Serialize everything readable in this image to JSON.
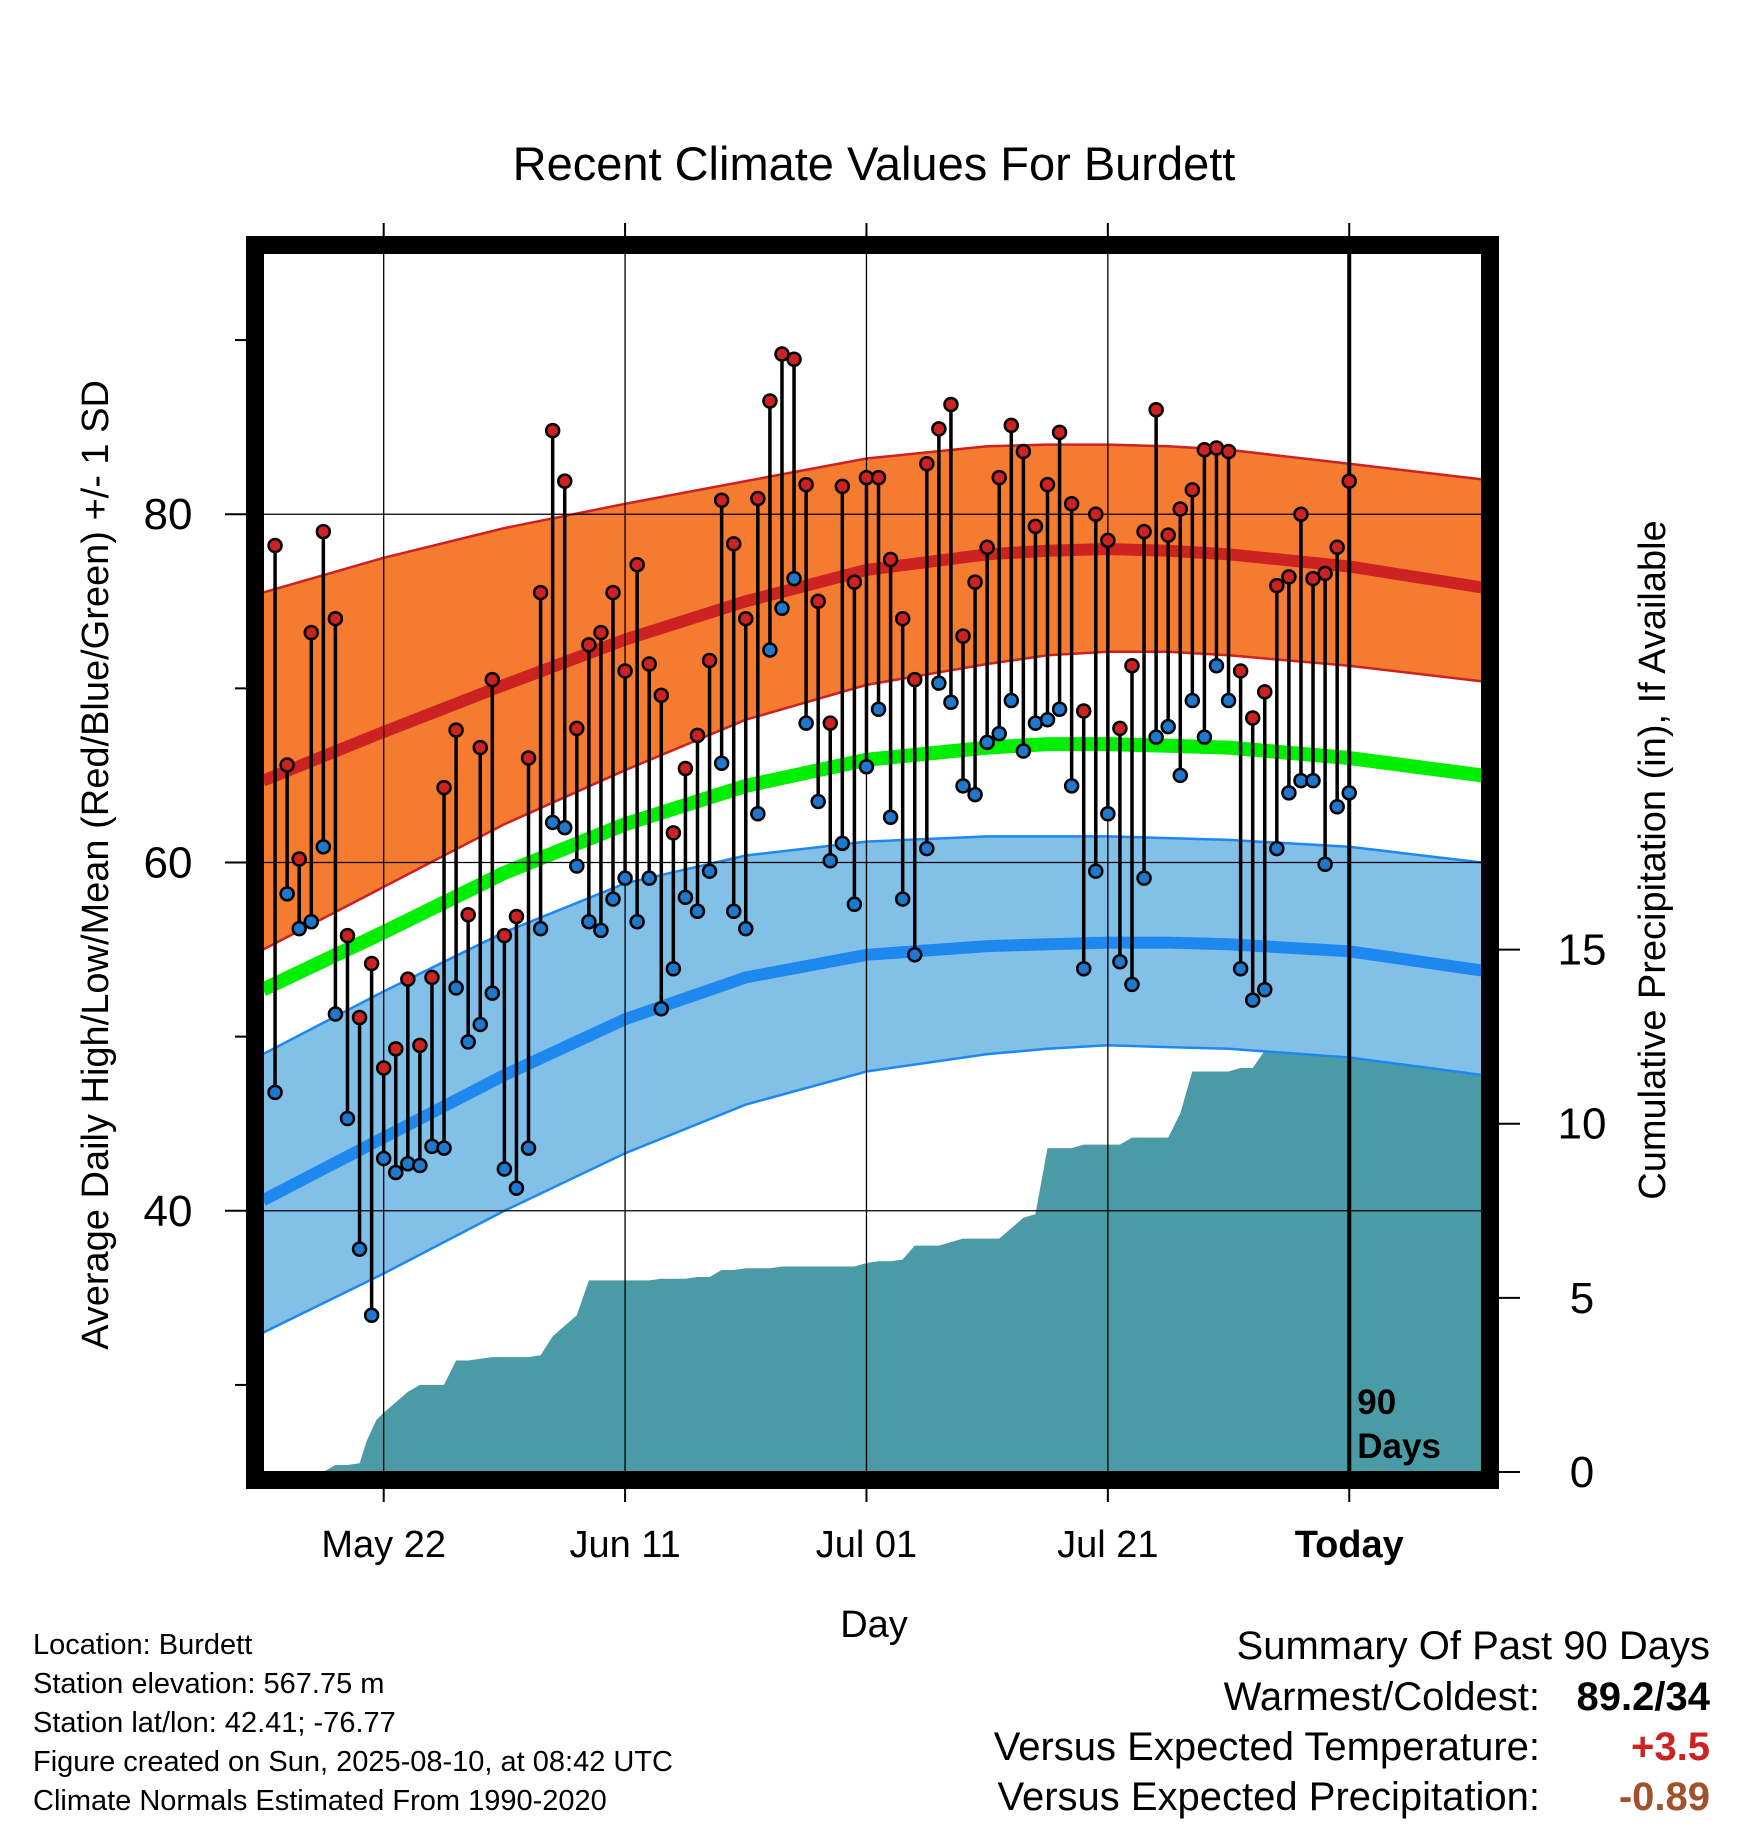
{
  "chart_data": {
    "type": "line",
    "title": "Recent Climate Values For Burdett",
    "xlabel": "Day",
    "ylabel": "Average Daily High/Low/Mean (Red/Blue/Green) +/- 1 SD",
    "y2label": "Cumulative Precipitation (in), If Available",
    "x_ticks": [
      "May 22",
      "Jun 11",
      "Jul 01",
      "Jul 21",
      "Today"
    ],
    "y_ticks": [
      40,
      60,
      80
    ],
    "y2_ticks": [
      0,
      5,
      10,
      15
    ],
    "ylim": [
      25,
      95
    ],
    "y2lim": [
      0,
      35
    ],
    "xlim_days": [
      0,
      101
    ],
    "today_day": 90,
    "today_label_line1": "90",
    "today_label_line2": "Days",
    "normals": {
      "x": [
        0,
        10,
        20,
        30,
        40,
        50,
        60,
        65,
        70,
        75,
        80,
        90,
        101
      ],
      "high_mean": [
        64.7,
        67.5,
        70.2,
        72.8,
        75.0,
        76.8,
        77.7,
        77.9,
        78.0,
        77.9,
        77.7,
        77.0,
        75.8
      ],
      "high_upper": [
        75.5,
        77.5,
        79.2,
        80.6,
        81.9,
        83.2,
        83.9,
        84.0,
        84.0,
        83.9,
        83.7,
        82.9,
        82.0
      ],
      "high_lower": [
        55.0,
        58.6,
        62.2,
        65.3,
        68.2,
        70.2,
        71.4,
        71.9,
        72.1,
        72.1,
        71.9,
        71.3,
        70.4
      ],
      "mean": [
        52.7,
        56.0,
        59.4,
        62.2,
        64.4,
        65.9,
        66.6,
        66.8,
        66.8,
        66.7,
        66.6,
        66.0,
        65.0
      ],
      "low_mean": [
        40.6,
        44.2,
        47.8,
        51.0,
        53.4,
        54.7,
        55.2,
        55.3,
        55.4,
        55.4,
        55.3,
        54.9,
        53.8
      ],
      "low_upper": [
        49.0,
        52.6,
        56.0,
        58.8,
        60.4,
        61.2,
        61.5,
        61.5,
        61.5,
        61.4,
        61.3,
        60.9,
        60.0
      ],
      "low_lower": [
        33.0,
        36.4,
        40.0,
        43.3,
        46.1,
        48.0,
        49.0,
        49.3,
        49.5,
        49.4,
        49.3,
        48.8,
        47.8
      ]
    },
    "series": [
      {
        "name": "Daily High",
        "color": "#cc2222",
        "values": [
          78.2,
          65.6,
          60.2,
          73.2,
          79.0,
          74.0,
          55.8,
          51.1,
          54.2,
          48.2,
          49.3,
          53.3,
          49.5,
          53.4,
          64.3,
          67.6,
          57.0,
          66.6,
          70.5,
          55.8,
          56.9,
          66.0,
          75.5,
          84.8,
          81.9,
          67.7,
          72.5,
          73.2,
          75.5,
          71.0,
          77.1,
          71.4,
          69.6,
          61.7,
          65.4,
          67.3,
          71.6,
          80.8,
          78.3,
          74.0,
          80.9,
          86.5,
          89.2,
          88.9,
          81.7,
          75.0,
          68.0,
          81.6,
          76.1,
          82.1,
          82.1,
          77.4,
          74.0,
          70.5,
          82.9,
          84.9,
          86.3,
          73.0,
          76.1,
          78.1,
          82.1,
          85.1,
          83.6,
          79.3,
          81.7,
          84.7,
          80.6,
          68.7,
          80.0,
          78.5,
          67.7,
          71.3,
          79.0,
          86.0,
          78.8,
          80.3,
          81.4,
          83.7,
          83.8,
          83.6,
          71.0,
          68.3,
          69.8,
          75.9,
          76.4,
          80.0,
          76.3,
          76.6,
          78.1,
          81.9
        ]
      },
      {
        "name": "Daily Low",
        "color": "#1f78cc",
        "values": [
          46.8,
          58.2,
          56.2,
          56.6,
          60.9,
          51.3,
          45.3,
          37.8,
          34.0,
          43.0,
          42.2,
          42.7,
          42.6,
          43.7,
          43.6,
          52.8,
          49.7,
          50.7,
          52.5,
          42.4,
          41.3,
          43.6,
          56.2,
          62.3,
          62.0,
          59.8,
          56.6,
          56.1,
          57.9,
          59.1,
          56.6,
          59.1,
          51.6,
          53.9,
          58.0,
          57.2,
          59.5,
          65.7,
          57.2,
          56.2,
          62.8,
          72.2,
          74.6,
          76.3,
          68.0,
          63.5,
          60.1,
          61.1,
          57.6,
          65.5,
          68.8,
          62.6,
          57.9,
          54.7,
          60.8,
          70.3,
          69.2,
          64.4,
          63.9,
          66.9,
          67.4,
          69.3,
          66.4,
          68.0,
          68.2,
          68.8,
          64.4,
          53.9,
          59.5,
          62.8,
          54.3,
          53.0,
          59.1,
          67.2,
          67.8,
          65.0,
          69.3,
          67.2,
          71.3,
          69.3,
          53.9,
          52.1,
          52.7,
          60.8,
          64.0,
          64.7,
          64.7,
          59.9,
          63.2,
          64.0
        ]
      }
    ],
    "precipitation": {
      "x": [
        0,
        5,
        6,
        7,
        8,
        8.6,
        9.4,
        10,
        11,
        12,
        13,
        14,
        15,
        16,
        17,
        18,
        19,
        20,
        21,
        22,
        23,
        24,
        25,
        26,
        27,
        28,
        29,
        30,
        31,
        32,
        33,
        34,
        35,
        36,
        37,
        38,
        39,
        40,
        41,
        42,
        43,
        44,
        45,
        46,
        47,
        48,
        49,
        50,
        51,
        52,
        53,
        54,
        55,
        56,
        57,
        58,
        59,
        60,
        61,
        62,
        63,
        64,
        65,
        66,
        67,
        68,
        69,
        70,
        71,
        72,
        73,
        74,
        75,
        76,
        77,
        78,
        79,
        80,
        81,
        82,
        83,
        84,
        85,
        86,
        87,
        88,
        89,
        90,
        101
      ],
      "values": [
        0.0,
        0.0,
        0.2,
        0.2,
        0.25,
        0.9,
        1.5,
        1.7,
        2.0,
        2.3,
        2.5,
        2.5,
        2.5,
        3.2,
        3.2,
        3.25,
        3.3,
        3.3,
        3.3,
        3.3,
        3.35,
        3.9,
        4.2,
        4.5,
        5.5,
        5.5,
        5.5,
        5.5,
        5.5,
        5.5,
        5.55,
        5.55,
        5.55,
        5.6,
        5.6,
        5.8,
        5.8,
        5.85,
        5.85,
        5.85,
        5.9,
        5.9,
        5.9,
        5.9,
        5.9,
        5.9,
        5.9,
        6.0,
        6.05,
        6.05,
        6.1,
        6.5,
        6.5,
        6.5,
        6.6,
        6.7,
        6.7,
        6.7,
        6.7,
        7.0,
        7.3,
        7.4,
        9.3,
        9.3,
        9.3,
        9.4,
        9.4,
        9.4,
        9.4,
        9.6,
        9.6,
        9.6,
        9.6,
        10.3,
        11.5,
        11.5,
        11.5,
        11.5,
        11.6,
        11.6,
        12.1,
        12.1,
        12.1,
        12.1,
        12.1,
        12.1,
        12.1,
        12.1,
        12.1
      ]
    }
  },
  "info": {
    "location": "Location: Burdett",
    "elevation": "Station elevation: 567.75 m",
    "latlon": "Station lat/lon: 42.41; -76.77",
    "created": "Figure created on Sun, 2025-08-10, at 08:42 UTC",
    "normals_period": "Climate Normals Estimated From 1990-2020"
  },
  "summary": {
    "title": "Summary Of Past 90 Days",
    "warmest_coldest_label": "Warmest/Coldest:",
    "warmest_coldest_value": "89.2/34",
    "temp_label": "Versus Expected Temperature:",
    "temp_value": "+3.5",
    "precip_label": "Versus Expected Precipitation:",
    "precip_value": "-0.89"
  },
  "colors": {
    "high_band": "#f47b30",
    "high_line": "#cc2222",
    "mean_line": "#00ee00",
    "low_band": "#82c0e8",
    "low_line": "#1f88ee",
    "precip_fill": "#4a9ba5",
    "temp_anomaly": "#cc2222",
    "precip_anomaly": "#a0522d"
  }
}
